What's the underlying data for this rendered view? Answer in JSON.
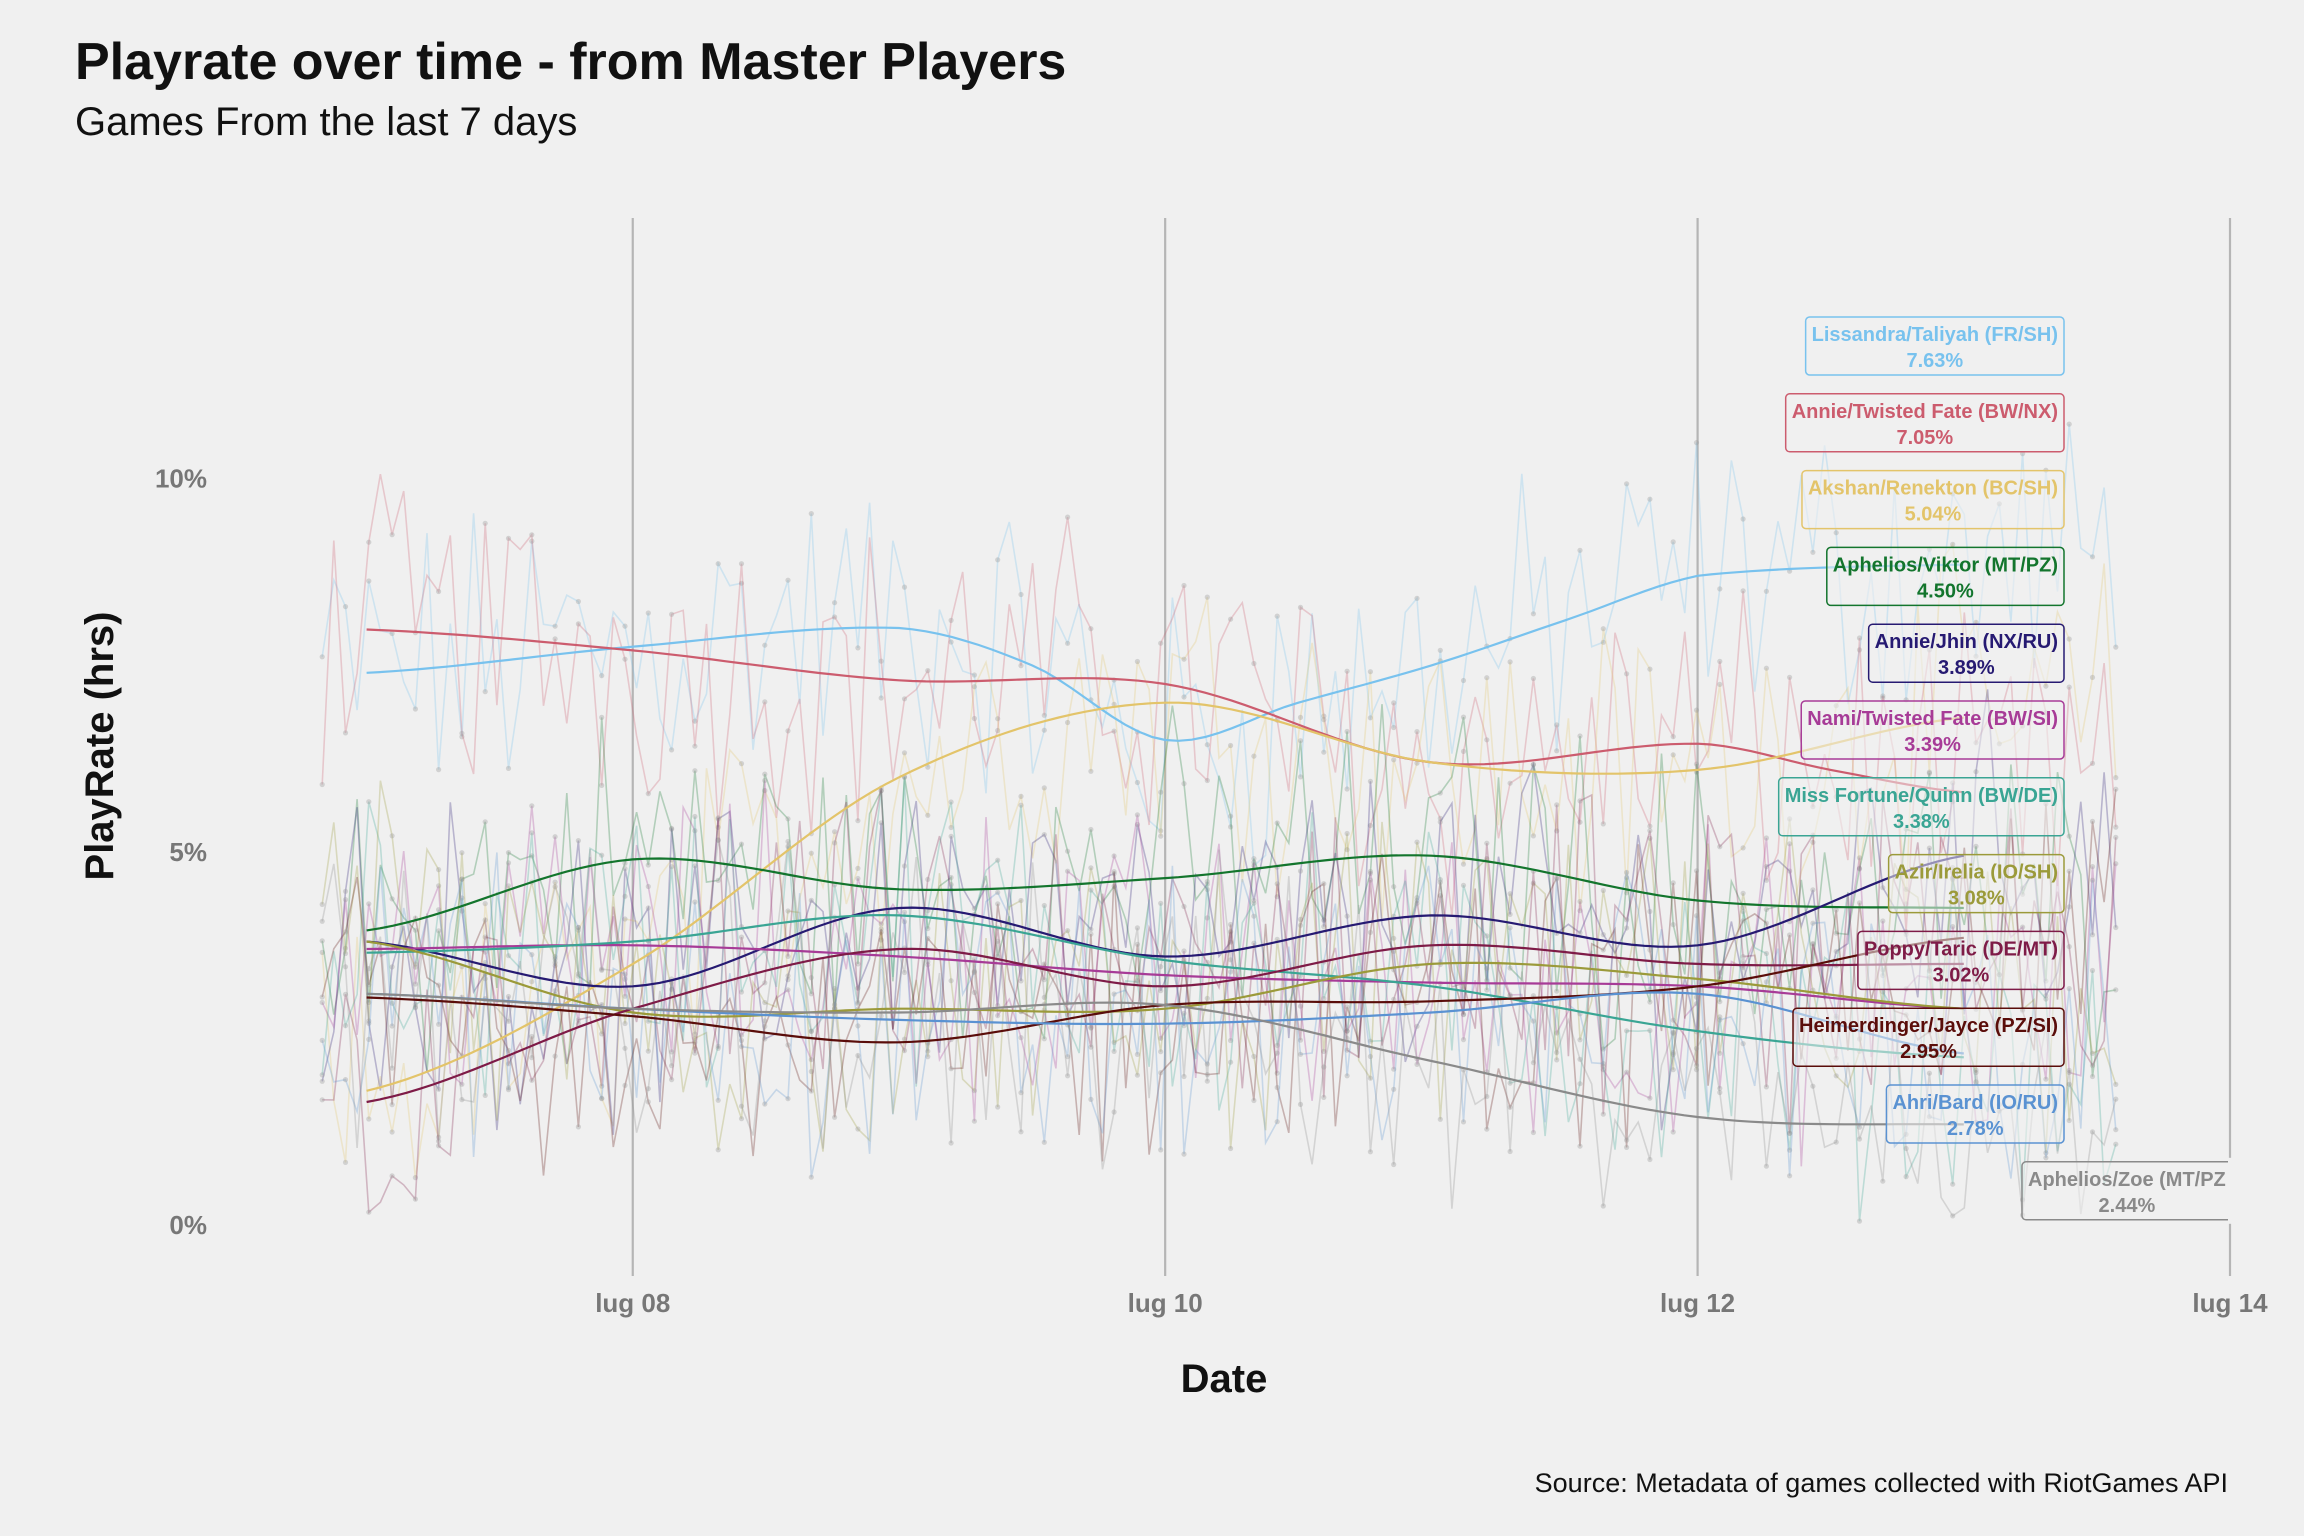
{
  "chart_data": {
    "type": "line",
    "title": "Playrate over time - from Master Players",
    "subtitle": "Games From the last 7 days",
    "caption": "Source: Metadata of games collected with RiotGames API",
    "xlabel": "Date",
    "ylabel": "PlayRate (hrs)",
    "x_ticks": [
      {
        "date": "2023-07-08",
        "label": "lug 08"
      },
      {
        "date": "2023-07-10",
        "label": "lug 10"
      },
      {
        "date": "2023-07-12",
        "label": "lug 12"
      },
      {
        "date": "2023-07-14",
        "label": "lug 14"
      }
    ],
    "y_ticks": [
      {
        "value": 0,
        "label": "0%"
      },
      {
        "value": 5,
        "label": "5%"
      },
      {
        "value": 10,
        "label": "10%"
      }
    ],
    "xlim": [
      "2023-07-06T18:00",
      "2023-07-14T00:00"
    ],
    "ylim": [
      -0.6,
      13.6
    ],
    "grid": "vertical major only",
    "series": [
      {
        "name": "Lissandra/Taliyah (FR/SH)",
        "label": "7.63%",
        "color": "#78c2ee",
        "smooth": [
          [
            "2023-07-07T00:00",
            7.4
          ],
          [
            "2023-07-08T00:00",
            7.75
          ],
          [
            "2023-07-09T00:00",
            8.0
          ],
          [
            "2023-07-09T12:00",
            7.5
          ],
          [
            "2023-07-10T00:00",
            6.5
          ],
          [
            "2023-07-10T12:00",
            7.0
          ],
          [
            "2023-07-11T00:00",
            7.5
          ],
          [
            "2023-07-11T12:00",
            8.1
          ],
          [
            "2023-07-12T00:00",
            8.7
          ],
          [
            "2023-07-13T00:00",
            8.85
          ]
        ]
      },
      {
        "name": "Annie/Twisted Fate (BW/NX)",
        "label": "7.05%",
        "color": "#cc5c6e",
        "smooth": [
          [
            "2023-07-07T00:00",
            7.98
          ],
          [
            "2023-07-08T00:00",
            7.7
          ],
          [
            "2023-07-09T00:00",
            7.3
          ],
          [
            "2023-07-10T00:00",
            7.25
          ],
          [
            "2023-07-11T00:00",
            6.2
          ],
          [
            "2023-07-12T00:00",
            6.45
          ],
          [
            "2023-07-12T12:00",
            6.1
          ],
          [
            "2023-07-13T00:00",
            5.8
          ]
        ]
      },
      {
        "name": "Akshan/Renekton (BC/SH)",
        "label": "5.04%",
        "color": "#e3c46a",
        "smooth": [
          [
            "2023-07-07T00:00",
            1.8
          ],
          [
            "2023-07-08T00:00",
            3.5
          ],
          [
            "2023-07-09T00:00",
            6.0
          ],
          [
            "2023-07-10T00:00",
            7.0
          ],
          [
            "2023-07-11T00:00",
            6.2
          ],
          [
            "2023-07-12T00:00",
            6.1
          ],
          [
            "2023-07-13T00:00",
            6.8
          ]
        ]
      },
      {
        "name": "Aphelios/Viktor (MT/PZ)",
        "label": "4.50%",
        "color": "#13752d",
        "smooth": [
          [
            "2023-07-07T00:00",
            3.95
          ],
          [
            "2023-07-08T00:00",
            4.9
          ],
          [
            "2023-07-09T00:00",
            4.5
          ],
          [
            "2023-07-10T00:00",
            4.65
          ],
          [
            "2023-07-11T00:00",
            4.95
          ],
          [
            "2023-07-12T00:00",
            4.35
          ],
          [
            "2023-07-13T00:00",
            4.25
          ]
        ]
      },
      {
        "name": "Annie/Jhin (NX/RU)",
        "label": "3.89%",
        "color": "#261a72",
        "smooth": [
          [
            "2023-07-07T00:00",
            3.8
          ],
          [
            "2023-07-08T00:00",
            3.2
          ],
          [
            "2023-07-09T00:00",
            4.25
          ],
          [
            "2023-07-10T00:00",
            3.6
          ],
          [
            "2023-07-11T00:00",
            4.15
          ],
          [
            "2023-07-12T00:00",
            3.75
          ],
          [
            "2023-07-13T00:00",
            4.95
          ]
        ]
      },
      {
        "name": "Nami/Twisted Fate (BW/SI)",
        "label": "3.39%",
        "color": "#a73b97",
        "smooth": [
          [
            "2023-07-07T00:00",
            3.7
          ],
          [
            "2023-07-08T00:00",
            3.75
          ],
          [
            "2023-07-09T00:00",
            3.6
          ],
          [
            "2023-07-10T00:00",
            3.35
          ],
          [
            "2023-07-11T00:00",
            3.25
          ],
          [
            "2023-07-12T00:00",
            3.2
          ],
          [
            "2023-07-13T00:00",
            2.9
          ]
        ]
      },
      {
        "name": "Miss Fortune/Quinn (BW/DE)",
        "label": "3.38%",
        "color": "#3aa594",
        "smooth": [
          [
            "2023-07-07T00:00",
            3.65
          ],
          [
            "2023-07-08T00:00",
            3.8
          ],
          [
            "2023-07-09T00:00",
            4.15
          ],
          [
            "2023-07-10T00:00",
            3.55
          ],
          [
            "2023-07-11T00:00",
            3.2
          ],
          [
            "2023-07-12T00:00",
            2.6
          ],
          [
            "2023-07-13T00:00",
            2.25
          ]
        ]
      },
      {
        "name": "Azir/Irelia (IO/SH)",
        "label": "3.08%",
        "color": "#9b9a3a",
        "smooth": [
          [
            "2023-07-07T00:00",
            3.8
          ],
          [
            "2023-07-08T00:00",
            2.85
          ],
          [
            "2023-07-09T00:00",
            2.9
          ],
          [
            "2023-07-10T00:00",
            2.9
          ],
          [
            "2023-07-11T00:00",
            3.5
          ],
          [
            "2023-07-12T00:00",
            3.3
          ],
          [
            "2023-07-13T00:00",
            2.9
          ]
        ]
      },
      {
        "name": "Poppy/Taric (DE/MT)",
        "label": "3.02%",
        "color": "#7e1b47",
        "smooth": [
          [
            "2023-07-07T00:00",
            1.65
          ],
          [
            "2023-07-08T00:00",
            2.9
          ],
          [
            "2023-07-09T00:00",
            3.7
          ],
          [
            "2023-07-10T00:00",
            3.2
          ],
          [
            "2023-07-11T00:00",
            3.75
          ],
          [
            "2023-07-12T00:00",
            3.5
          ],
          [
            "2023-07-13T00:00",
            3.5
          ]
        ]
      },
      {
        "name": "Heimerdinger/Jayce (PZ/SI)",
        "label": "2.95%",
        "color": "#5a0d0a",
        "smooth": [
          [
            "2023-07-07T00:00",
            3.05
          ],
          [
            "2023-07-08T00:00",
            2.8
          ],
          [
            "2023-07-09T00:00",
            2.45
          ],
          [
            "2023-07-10T00:00",
            2.95
          ],
          [
            "2023-07-11T00:00",
            3.0
          ],
          [
            "2023-07-12T00:00",
            3.2
          ],
          [
            "2023-07-13T00:00",
            3.85
          ]
        ]
      },
      {
        "name": "Ahri/Bard (IO/RU)",
        "label": "2.78%",
        "color": "#5a92d2",
        "smooth": [
          [
            "2023-07-07T00:00",
            3.1
          ],
          [
            "2023-07-08T00:00",
            2.9
          ],
          [
            "2023-07-09T00:00",
            2.75
          ],
          [
            "2023-07-10T00:00",
            2.7
          ],
          [
            "2023-07-11T00:00",
            2.85
          ],
          [
            "2023-07-12T00:00",
            3.1
          ],
          [
            "2023-07-13T00:00",
            2.3
          ]
        ]
      },
      {
        "name": "Aphelios/Zoe (MT/PZ",
        "label": "2.44%",
        "color": "#8a8a8a",
        "smooth": [
          [
            "2023-07-07T00:00",
            3.1
          ],
          [
            "2023-07-08T00:00",
            2.9
          ],
          [
            "2023-07-09T00:00",
            2.85
          ],
          [
            "2023-07-10T00:00",
            2.95
          ],
          [
            "2023-07-11T00:00",
            2.2
          ],
          [
            "2023-07-12T00:00",
            1.45
          ],
          [
            "2023-07-13T00:00",
            1.35
          ]
        ]
      }
    ]
  }
}
